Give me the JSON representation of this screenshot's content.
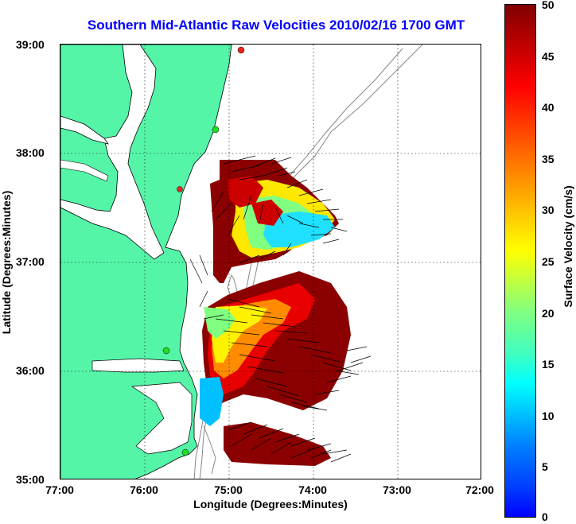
{
  "title": "Southern Mid-Atlantic Raw Velocities 2010/02/16 1700 GMT",
  "x_axis": {
    "label": "Longitude (Degrees:Minutes)",
    "ticks": [
      "77:00",
      "76:00",
      "75:00",
      "74:00",
      "73:00",
      "72:00"
    ]
  },
  "y_axis": {
    "label": "Latitude (Degrees:Minutes)",
    "ticks": [
      "39:00",
      "38:00",
      "37:00",
      "36:00",
      "35:00"
    ]
  },
  "colorbar": {
    "label": "Surface Velocity (cm/s)",
    "ticks": [
      "50",
      "45",
      "40",
      "35",
      "30",
      "25",
      "20",
      "15",
      "10",
      "5",
      "0"
    ],
    "range": [
      0,
      50
    ],
    "colormap": "jet"
  },
  "colors": {
    "land": "#55f5a8",
    "title": "#0000ff",
    "station_green": "#22dd22",
    "station_red": "#ee2222"
  },
  "map": {
    "lon_range": [
      -77,
      -72
    ],
    "lat_range": [
      35,
      39
    ],
    "grid": true,
    "layers": [
      "coastline",
      "bathymetry contours",
      "velocity field",
      "velocity vectors",
      "radar stations"
    ]
  }
}
